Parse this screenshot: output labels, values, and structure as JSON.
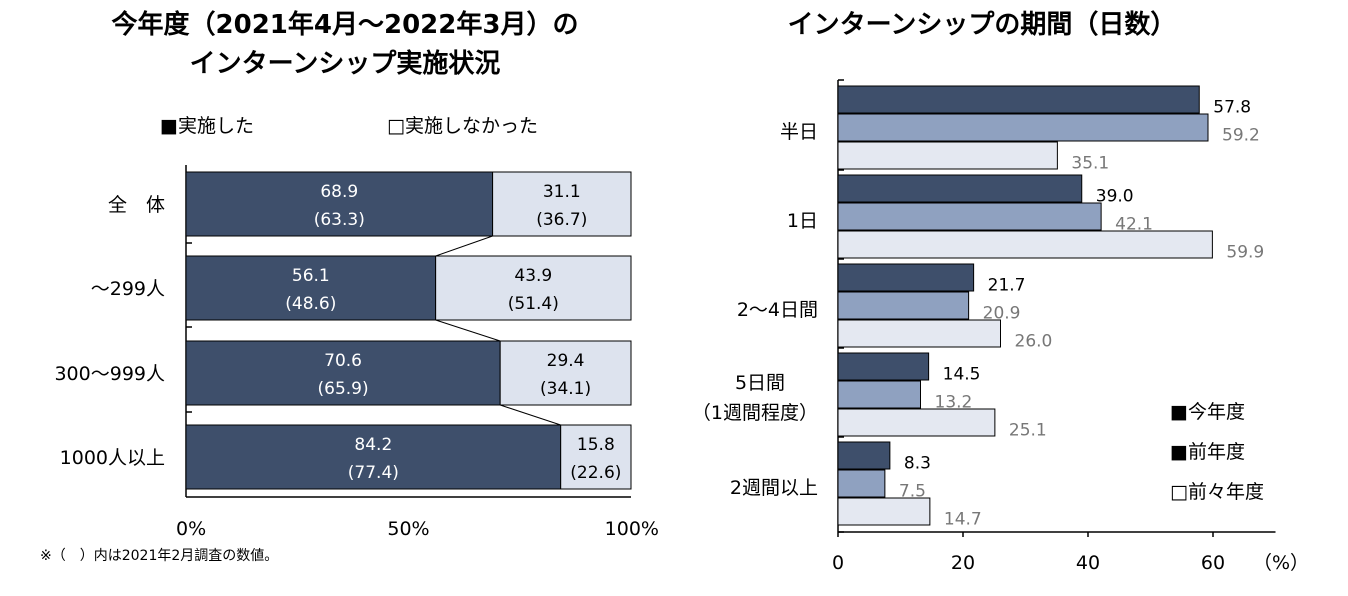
{
  "colors": {
    "current": "#3e4f6b",
    "prev": "#8fa1c0",
    "prev2": "#e4e8f1",
    "not_done": "#dde3ee",
    "gray_text": "#777777"
  },
  "chart_data": [
    {
      "type": "bar",
      "orientation": "horizontal",
      "stacked": true,
      "percent": true,
      "title_lines": [
        "今年度（2021年4月～2022年3月）の",
        "インターンシップ実施状況"
      ],
      "legend": [
        "■実施した",
        "□実施しなかった"
      ],
      "categories": [
        "全　体",
        "～299人",
        "300～999人",
        "1000人以上"
      ],
      "series": [
        {
          "name": "実施した",
          "values": [
            68.9,
            56.1,
            70.6,
            84.2
          ],
          "labels": [
            "68.9",
            "56.1",
            "70.6",
            "84.2"
          ],
          "prev_labels": [
            "(63.3)",
            "(48.6)",
            "(65.9)",
            "(77.4)"
          ]
        },
        {
          "name": "実施しなかった",
          "values": [
            31.1,
            43.9,
            29.4,
            15.8
          ],
          "labels": [
            "31.1",
            "43.9",
            "29.4",
            "15.8"
          ],
          "prev_labels": [
            "(36.7)",
            "(51.4)",
            "(34.1)",
            "(22.6)"
          ]
        }
      ],
      "xlim": [
        0,
        100
      ],
      "xticks": [
        "0%",
        "50%",
        "100%"
      ],
      "note": "※（　）内は2021年2月調査の数値。"
    },
    {
      "type": "bar",
      "orientation": "horizontal",
      "title": "インターンシップの期間（日数）",
      "categories": [
        [
          "半日"
        ],
        [
          "1日"
        ],
        [
          "2～4日間"
        ],
        [
          "5日間",
          "（1週間程度）"
        ],
        [
          "2週間以上"
        ]
      ],
      "series": [
        {
          "name": "今年度",
          "values": [
            57.8,
            39.0,
            21.7,
            14.5,
            8.3
          ],
          "labels": [
            "57.8",
            "39.0",
            "21.7",
            "14.5",
            "8.3"
          ]
        },
        {
          "name": "前年度",
          "values": [
            59.2,
            42.1,
            20.9,
            13.2,
            7.5
          ],
          "labels": [
            "59.2",
            "42.1",
            "20.9",
            "13.2",
            "7.5"
          ]
        },
        {
          "name": "前々年度",
          "values": [
            35.1,
            59.9,
            26.0,
            25.1,
            14.7
          ],
          "labels": [
            "35.1",
            "59.9",
            "26.0",
            "25.1",
            "14.7"
          ]
        }
      ],
      "legend": [
        "■今年度",
        "■前年度",
        "□前々年度"
      ],
      "xlim": [
        0,
        70
      ],
      "xticks": [
        "0",
        "20",
        "40",
        "60"
      ],
      "xtick_values": [
        0,
        20,
        40,
        60
      ],
      "unit": "（%）"
    }
  ]
}
